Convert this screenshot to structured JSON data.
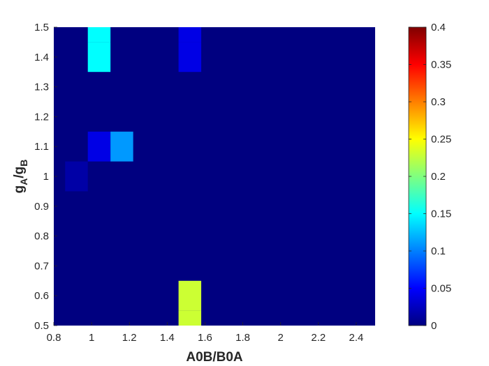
{
  "chart_data": {
    "type": "heatmap",
    "title": "",
    "xlabel": "A0B/B0A",
    "ylabel_parts": [
      "g",
      "A",
      "/g",
      "B"
    ],
    "xlim": [
      0.8,
      2.5
    ],
    "ylim": [
      0.5,
      1.5
    ],
    "x_ticks": [
      "0.8",
      "1",
      "1.2",
      "1.4",
      "1.6",
      "1.8",
      "2",
      "2.2",
      "2.4"
    ],
    "y_ticks": [
      "0.5",
      "0.6",
      "0.7",
      "0.8",
      "0.9",
      "1",
      "1.1",
      "1.2",
      "1.3",
      "1.4",
      "1.5"
    ],
    "x_centers": [
      0.8,
      0.92,
      1.04,
      1.16,
      1.28,
      1.4,
      1.52,
      1.64,
      1.76,
      1.88,
      2.0,
      2.12,
      2.24,
      2.36,
      2.48
    ],
    "y_centers": [
      0.5,
      0.6,
      0.7,
      0.8,
      0.9,
      1.0,
      1.1,
      1.2,
      1.3,
      1.4,
      1.5
    ],
    "colormap": "jet",
    "clim": [
      0,
      0.4
    ],
    "colorbar_ticks": [
      "0",
      "0.05",
      "0.1",
      "0.15",
      "0.2",
      "0.25",
      "0.3",
      "0.35",
      "0.4"
    ],
    "nonzero_cells": [
      {
        "x": 1.04,
        "y": 1.5,
        "value": 0.15
      },
      {
        "x": 1.04,
        "y": 1.4,
        "value": 0.15
      },
      {
        "x": 1.52,
        "y": 1.5,
        "value": 0.04
      },
      {
        "x": 1.52,
        "y": 1.4,
        "value": 0.04
      },
      {
        "x": 1.04,
        "y": 1.1,
        "value": 0.04
      },
      {
        "x": 1.16,
        "y": 1.1,
        "value": 0.11
      },
      {
        "x": 0.92,
        "y": 1.0,
        "value": 0.015
      },
      {
        "x": 1.52,
        "y": 0.6,
        "value": 0.23
      },
      {
        "x": 1.52,
        "y": 0.5,
        "value": 0.23
      }
    ],
    "background_value": 0
  }
}
